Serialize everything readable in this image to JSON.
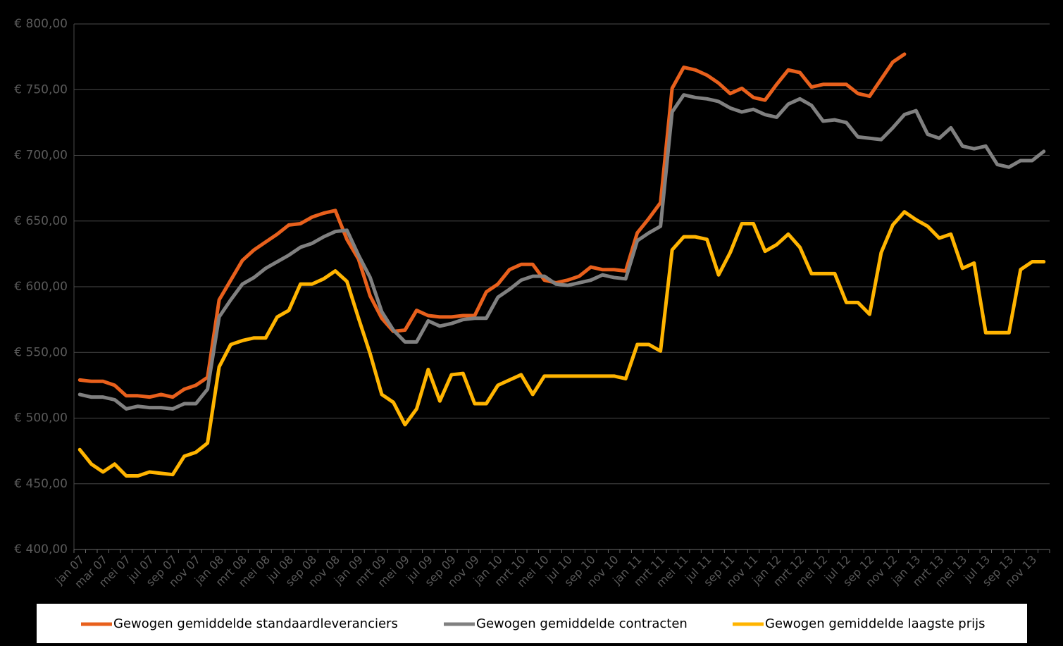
{
  "chart_data": {
    "type": "line",
    "categories": [
      "jan 07",
      null,
      "mar 07",
      null,
      "mei 07",
      null,
      "jul 07",
      null,
      "sep 07",
      null,
      "nov 07",
      null,
      "jan 08",
      null,
      "mrt 08",
      null,
      "mei 08",
      null,
      "jul 08",
      null,
      "sep 08",
      null,
      "nov 08",
      null,
      "jan 09",
      null,
      "mrt 09",
      null,
      "mei 09",
      null,
      "jul 09",
      null,
      "sep 09",
      null,
      "nov 09",
      null,
      "jan 10",
      null,
      "mrt 10",
      null,
      "mei 10",
      null,
      "jul 10",
      null,
      "sep 10",
      null,
      "nov 10",
      null,
      "jan 11",
      null,
      "mrt 11",
      null,
      "mei 11",
      null,
      "jul 11",
      null,
      "sep 11",
      null,
      "nov 11",
      null,
      "jan 12",
      null,
      "mrt 12",
      null,
      "mei 12",
      null,
      "jul 12",
      null,
      "sep 12",
      null,
      "nov 12",
      null,
      "jan 13",
      null,
      "mrt 13",
      null,
      "mei 13",
      null,
      "jul 13",
      null,
      "sep 13",
      null,
      "nov 13",
      null
    ],
    "series": [
      {
        "name": "Gewogen gemiddelde standaardleveranciers",
        "color": "#e8601c",
        "values": [
          529,
          528,
          528,
          525,
          517,
          517,
          516,
          518,
          516,
          522,
          525,
          531,
          590,
          605,
          620,
          628,
          634,
          640,
          647,
          648,
          653,
          656,
          658,
          636,
          621,
          593,
          576,
          566,
          567,
          582,
          578,
          577,
          577,
          578,
          578,
          596,
          602,
          613,
          617,
          617,
          605,
          603,
          605,
          608,
          615,
          613,
          613,
          612,
          641,
          652,
          664,
          751,
          767,
          765,
          761,
          755,
          747,
          751,
          744,
          742,
          754,
          765,
          763,
          752,
          754,
          754,
          754,
          747,
          745,
          758,
          771,
          777,
          null,
          null,
          null,
          null,
          null,
          null,
          null,
          null,
          null,
          null,
          null,
          null
        ]
      },
      {
        "name": "Gewogen gemiddelde contracten",
        "color": "#808080",
        "values": [
          518,
          516,
          516,
          514,
          507,
          509,
          508,
          508,
          507,
          511,
          511,
          522,
          577,
          590,
          602,
          607,
          614,
          619,
          624,
          630,
          633,
          638,
          642,
          643,
          624,
          607,
          581,
          567,
          558,
          558,
          574,
          570,
          572,
          575,
          576,
          576,
          592,
          598,
          605,
          608,
          608,
          602,
          601,
          603,
          605,
          609,
          607,
          606,
          635,
          641,
          646,
          733,
          746,
          744,
          743,
          741,
          736,
          733,
          735,
          731,
          729,
          739,
          743,
          738,
          726,
          727,
          725,
          714,
          713,
          712,
          721,
          731,
          734,
          716,
          713,
          721,
          707,
          705,
          707,
          693,
          691,
          696,
          696,
          703
        ]
      },
      {
        "name": "Gewogen gemiddelde laagste prijs",
        "color": "#ffb400",
        "values": [
          476,
          465,
          459,
          465,
          456,
          456,
          459,
          458,
          457,
          471,
          474,
          481,
          539,
          556,
          559,
          561,
          561,
          577,
          582,
          602,
          602,
          606,
          612,
          604,
          576,
          549,
          518,
          512,
          495,
          507,
          537,
          513,
          533,
          534,
          511,
          511,
          525,
          529,
          533,
          518,
          532,
          532,
          532,
          532,
          532,
          532,
          532,
          530,
          556,
          556,
          551,
          628,
          638,
          638,
          636,
          609,
          626,
          648,
          648,
          627,
          632,
          640,
          630,
          610,
          610,
          610,
          588,
          588,
          579,
          626,
          647,
          657,
          651,
          646,
          637,
          640,
          614,
          618,
          565,
          565,
          565,
          613,
          619,
          619
        ]
      }
    ],
    "ylim": [
      400,
      800
    ],
    "yticks": [
      {
        "value": 400,
        "label": "€ 400,00"
      },
      {
        "value": 450,
        "label": "€ 450,00"
      },
      {
        "value": 500,
        "label": "€ 500,00"
      },
      {
        "value": 550,
        "label": "€ 550,00"
      },
      {
        "value": 600,
        "label": "€ 600,00"
      },
      {
        "value": 650,
        "label": "€ 650,00"
      },
      {
        "value": 700,
        "label": "€ 700,00"
      },
      {
        "value": 750,
        "label": "€ 750,00"
      },
      {
        "value": 800,
        "label": "€ 800,00"
      }
    ],
    "grid": true,
    "legend": "bottom"
  }
}
